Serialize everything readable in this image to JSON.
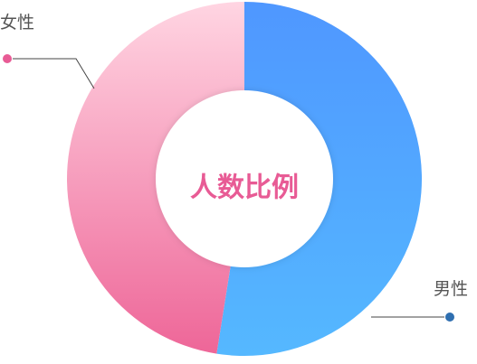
{
  "chart_data": {
    "type": "pie",
    "style": "donut",
    "title": "人数比例",
    "categories": [
      "男性",
      "女性"
    ],
    "values": [
      52.5,
      47.5
    ],
    "colors": {
      "男性": [
        "#4f97ff",
        "#55b8ff"
      ],
      "女性": [
        "#ffd5e2",
        "#ee6698"
      ]
    },
    "accent_color": "#e85b95",
    "legend_dot_colors": {
      "男性": "#2f6fb0",
      "女性": "#e85b95"
    },
    "start": "top",
    "direction": "clockwise"
  }
}
